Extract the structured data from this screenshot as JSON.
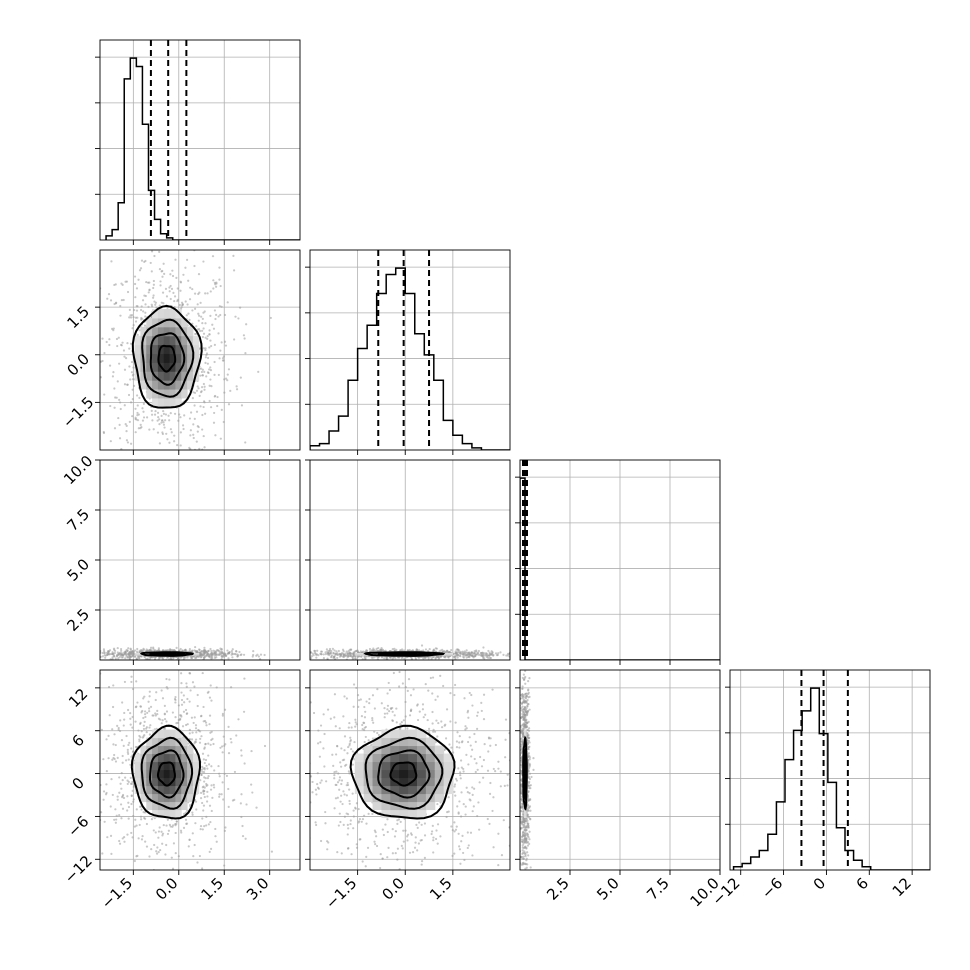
{
  "chart_data": {
    "type": "corner",
    "title": "",
    "parameters": [
      {
        "label": "",
        "range": [
          -2.6,
          4.0
        ],
        "ticks": [
          -1.5,
          0.0,
          1.5,
          3.0
        ],
        "tick_labels": [
          "−1.5",
          "0.0",
          "1.5",
          "3.0"
        ],
        "hist_bin_width": 0.2,
        "hist_start": -2.4,
        "hist_counts": [
          2,
          5,
          18,
          78,
          88,
          84,
          56,
          24,
          10,
          3,
          1,
          0,
          0,
          0,
          0,
          0,
          0,
          0,
          0,
          0,
          0,
          0,
          0,
          0,
          0,
          0,
          0,
          0,
          0,
          0,
          0,
          0,
          0
        ],
        "quantiles": [
          -0.92,
          -0.35,
          0.25
        ]
      },
      {
        "label": "",
        "range": [
          -3.0,
          3.3
        ],
        "ticks": [
          -1.5,
          0.0,
          1.5
        ],
        "tick_labels": [
          "−1.5",
          "0.0",
          "1.5"
        ],
        "hist_bin_width": 0.3,
        "hist_start": -3.0,
        "hist_counts": [
          2,
          3,
          9,
          16,
          33,
          48,
          59,
          74,
          83,
          86,
          74,
          55,
          45,
          33,
          14,
          7,
          3,
          1,
          0,
          0,
          0
        ],
        "quantiles": [
          -0.85,
          -0.05,
          0.75
        ]
      },
      {
        "label": "",
        "range": [
          0.0,
          10.0
        ],
        "ticks": [
          2.5,
          5.0,
          7.5,
          10.0
        ],
        "tick_labels": [
          "2.5",
          "5.0",
          "7.5",
          "10.0"
        ],
        "hist_bin_width": 0.25,
        "hist_start": 0.0,
        "hist_counts": [
          95,
          0,
          0,
          0,
          0,
          0,
          0,
          0,
          0,
          0,
          0,
          0,
          0,
          0,
          0,
          0,
          0,
          0,
          0,
          0,
          0,
          0,
          0,
          0,
          0,
          0,
          0,
          0,
          0,
          0,
          0,
          0,
          0,
          0,
          0,
          0,
          0,
          0,
          0,
          0
        ],
        "quantiles": [
          0.15,
          0.25,
          0.35
        ]
      },
      {
        "label": "",
        "range": [
          -13.5,
          14.5
        ],
        "ticks": [
          -12,
          -6,
          0,
          6,
          12
        ],
        "tick_labels": [
          "−12",
          "−6",
          "0",
          "6",
          "12"
        ],
        "hist_bin_width": 1.2,
        "hist_start": -13.0,
        "hist_counts": [
          1,
          2,
          4,
          6,
          11,
          21,
          34,
          43,
          49,
          56,
          42,
          27,
          13,
          6,
          3,
          1,
          0,
          0,
          0,
          0,
          0,
          0,
          0,
          0
        ],
        "quantiles": [
          -3.5,
          -0.4,
          3.0
        ]
      }
    ],
    "row_tick_labels": {
      "1": {
        "ticks": [
          -1.5,
          0.0,
          1.5
        ],
        "tick_labels": [
          "−1.5",
          "0.0",
          "1.5"
        ]
      },
      "2": {
        "ticks": [
          2.5,
          5.0,
          7.5,
          10.0
        ],
        "tick_labels": [
          "2.5",
          "5.0",
          "7.5",
          "10.0"
        ]
      },
      "3": {
        "ticks": [
          -12,
          -6,
          0,
          6,
          12
        ],
        "tick_labels": [
          "−12",
          "−6",
          "0",
          "6",
          "12"
        ]
      }
    },
    "pairs": [
      {
        "row": 1,
        "col": 0,
        "center": [
          -0.4,
          -0.1
        ],
        "sigma": [
          0.55,
          0.8
        ],
        "contour_levels": [
          0.5,
          1.0,
          1.5,
          2.0
        ]
      },
      {
        "row": 2,
        "col": 0,
        "center": [
          -0.4,
          0.3
        ],
        "sigma": [
          0.55,
          0.06
        ],
        "contour_levels": [
          0.5,
          1.0,
          1.5
        ]
      },
      {
        "row": 2,
        "col": 1,
        "center": [
          -0.05,
          0.3
        ],
        "sigma": [
          0.8,
          0.06
        ],
        "contour_levels": [
          0.5,
          1.0,
          1.5
        ]
      },
      {
        "row": 3,
        "col": 0,
        "center": [
          -0.4,
          0.0
        ],
        "sigma": [
          0.55,
          3.2
        ],
        "contour_levels": [
          0.5,
          1.0,
          1.5,
          2.0
        ]
      },
      {
        "row": 3,
        "col": 1,
        "center": [
          -0.05,
          0.0
        ],
        "sigma": [
          0.8,
          3.2
        ],
        "contour_levels": [
          0.5,
          1.0,
          1.5,
          2.0
        ]
      },
      {
        "row": 3,
        "col": 2,
        "center": [
          0.25,
          0.0
        ],
        "sigma": [
          0.06,
          3.2
        ],
        "contour_levels": [
          0.5,
          1.0,
          1.5
        ]
      }
    ],
    "grid": true,
    "legend": "none",
    "colors": {
      "line": "#000000",
      "scatter": "#9a9a9a",
      "density_dark": "#222222",
      "grid": "#b0b0b0"
    }
  }
}
